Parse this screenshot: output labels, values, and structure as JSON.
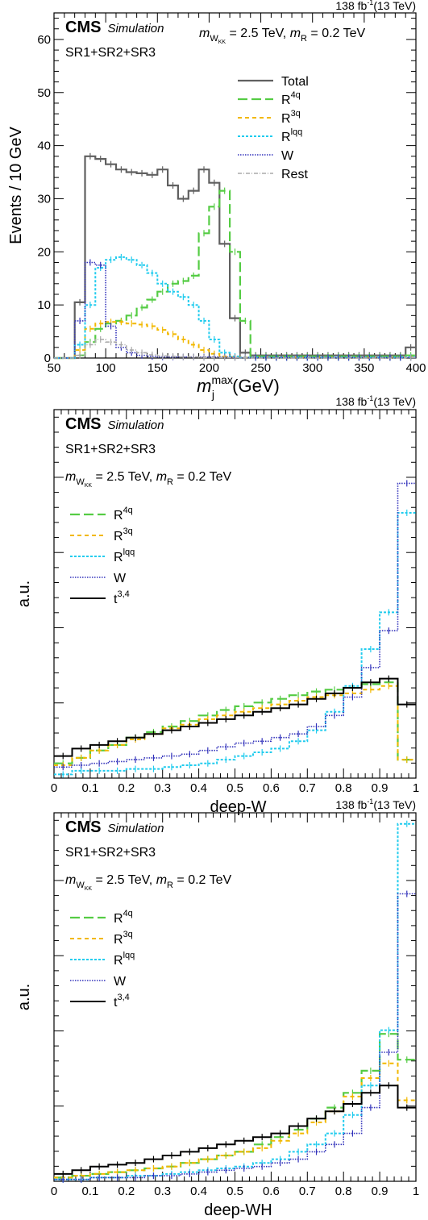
{
  "colors": {
    "total": "#606060",
    "r4q": "#55cc44",
    "r3q": "#f2b800",
    "rlqq": "#22ccee",
    "w": "#3333bb",
    "rest": "#aaaaaa",
    "t34": "#000000"
  },
  "chart_data": [
    {
      "type": "line",
      "lumi": "138 fb",
      "lumi_sup": "-1",
      "energy": "(13 TeV)",
      "cms": "CMS",
      "cms_sub": "Simulation",
      "region": "SR1+SR2+SR3",
      "model_m": "m",
      "model_sub1": "W",
      "model_sub2": "KK",
      "model_mid": " = 2.5 TeV, ",
      "model_m2": "m",
      "model_sub3": "R",
      "model_tail": " = 0.2 TeV",
      "ylabel": "Events / 10 GeV",
      "xlabel_m": "m",
      "xlabel_sup": "max",
      "xlabel_sub": "j",
      "xlabel_unit": " (GeV)",
      "xlim": [
        50,
        400
      ],
      "ylim": [
        0,
        65
      ],
      "xticks": [
        50,
        100,
        150,
        200,
        250,
        300,
        350,
        400
      ],
      "yticks": [
        0,
        10,
        20,
        30,
        40,
        50,
        60
      ],
      "bin_edges": [
        50,
        60,
        70,
        80,
        90,
        100,
        110,
        120,
        130,
        140,
        150,
        160,
        170,
        180,
        190,
        200,
        210,
        220,
        230,
        240,
        250,
        260,
        270,
        280,
        290,
        300,
        310,
        320,
        330,
        340,
        350,
        360,
        370,
        380,
        390,
        400
      ],
      "series": [
        {
          "name": "Total",
          "key": "total",
          "values": [
            0,
            0,
            10.5,
            38.0,
            37.5,
            36.5,
            35.5,
            35.0,
            34.8,
            34.5,
            35.5,
            32.5,
            30.0,
            31.5,
            35.5,
            33.0,
            21.5,
            7.5,
            1.0,
            0.5,
            0.5,
            0.5,
            0.5,
            0.5,
            0.5,
            0.5,
            0.5,
            0.5,
            0.5,
            0.5,
            0.5,
            0.5,
            0.5,
            0.5,
            2.0
          ]
        },
        {
          "name": "R",
          "sup": "4q",
          "key": "r4q",
          "values": [
            0,
            0,
            0.5,
            3.0,
            5.5,
            6.5,
            7.0,
            8.0,
            9.5,
            11.0,
            12.5,
            14.0,
            14.5,
            15.5,
            23.5,
            28.5,
            31.5,
            20.0,
            7.0,
            0.3,
            0.3,
            0.3,
            0.3,
            0.3,
            0.3,
            0.3,
            0.3,
            0.3,
            0.3,
            0.3,
            0.3,
            0.3,
            0.3,
            0.3,
            0.5
          ]
        },
        {
          "name": "R",
          "sup": "3q",
          "key": "r3q",
          "values": [
            0,
            0,
            1.5,
            5.5,
            6.5,
            6.8,
            6.8,
            6.5,
            6.3,
            6.0,
            5.3,
            4.5,
            3.5,
            2.5,
            1.5,
            0.8,
            0.3,
            0.2,
            0.1,
            0.1,
            0.1,
            0.1,
            0.1,
            0.1,
            0.1,
            0.1,
            0.1,
            0.1,
            0.1,
            0.1,
            0.1,
            0.1,
            0.1,
            0.1,
            0.2
          ]
        },
        {
          "name": "R",
          "sup": "lqq",
          "key": "rlqq",
          "values": [
            0,
            0,
            2.5,
            10.0,
            17.0,
            18.5,
            19.0,
            18.5,
            17.5,
            16.0,
            14.0,
            12.5,
            11.5,
            10.0,
            7.0,
            3.5,
            1.0,
            0.3,
            0.1,
            0.1,
            0.1,
            0.1,
            0.1,
            0.1,
            0.1,
            0.1,
            0.1,
            0.1,
            0.1,
            0.1,
            0.1,
            0.1,
            0.1,
            0.1,
            0.2
          ]
        },
        {
          "name": "W",
          "key": "w",
          "values": [
            0,
            0,
            7.0,
            18.0,
            17.5,
            6.0,
            2.0,
            1.0,
            0.5,
            0.3,
            0.2,
            0.2,
            0.2,
            0.2,
            0.2,
            0.2,
            0.2,
            0.1,
            0.1,
            0.1,
            0.1,
            0.1,
            0.1,
            0.1,
            0.1,
            0.1,
            0.1,
            0.1,
            0.1,
            0.1,
            0.1,
            0.1,
            0.1,
            0.1,
            0.1
          ]
        },
        {
          "name": "Rest",
          "key": "rest",
          "values": [
            0,
            0,
            0.5,
            2.5,
            3.5,
            3.0,
            2.5,
            1.5,
            1.0,
            0.6,
            0.4,
            0.3,
            0.2,
            0.2,
            0.1,
            0.1,
            0.1,
            0.1,
            0.1,
            0,
            0,
            0,
            0,
            0,
            0,
            0,
            0,
            0,
            0,
            0,
            0,
            0,
            0,
            0,
            0.1
          ]
        }
      ]
    },
    {
      "type": "line",
      "lumi": "138 fb",
      "lumi_sup": "-1",
      "energy": "(13 TeV)",
      "cms": "CMS",
      "cms_sub": "Simulation",
      "region": "SR1+SR2+SR3",
      "model_m": "m",
      "model_sub1": "W",
      "model_sub2": "KK",
      "model_mid": " = 2.5 TeV, ",
      "model_m2": "m",
      "model_sub3": "R",
      "model_tail": " = 0.2 TeV",
      "ylabel": "a.u.",
      "xlabel": "deep-W",
      "xlim": [
        0,
        1
      ],
      "ylim": [
        0,
        1
      ],
      "xticks": [
        0,
        0.1,
        0.2,
        0.3,
        0.4,
        0.5,
        0.6,
        0.7,
        0.8,
        0.9,
        1
      ],
      "bin_edges": [
        0,
        0.05,
        0.1,
        0.15,
        0.2,
        0.25,
        0.3,
        0.35,
        0.4,
        0.45,
        0.5,
        0.55,
        0.6,
        0.65,
        0.7,
        0.75,
        0.8,
        0.85,
        0.9,
        0.95,
        1.0
      ],
      "series": [
        {
          "name": "R",
          "sup": "4q",
          "key": "r4q",
          "values": [
            0.04,
            0.055,
            0.075,
            0.09,
            0.11,
            0.125,
            0.14,
            0.155,
            0.17,
            0.185,
            0.195,
            0.205,
            0.215,
            0.225,
            0.235,
            0.24,
            0.245,
            0.255,
            0.26,
            0.05
          ]
        },
        {
          "name": "R",
          "sup": "3q",
          "key": "r3q",
          "values": [
            0.035,
            0.055,
            0.075,
            0.09,
            0.105,
            0.12,
            0.135,
            0.145,
            0.16,
            0.17,
            0.18,
            0.19,
            0.2,
            0.21,
            0.22,
            0.225,
            0.23,
            0.24,
            0.25,
            0.05
          ]
        },
        {
          "name": "R",
          "sup": "lqq",
          "key": "rlqq",
          "values": [
            0.01,
            0.02,
            0.02,
            0.02,
            0.025,
            0.025,
            0.03,
            0.035,
            0.04,
            0.05,
            0.06,
            0.07,
            0.08,
            0.1,
            0.13,
            0.18,
            0.25,
            0.35,
            0.45,
            0.72
          ]
        },
        {
          "name": "W",
          "key": "w",
          "values": [
            0.03,
            0.035,
            0.04,
            0.045,
            0.05,
            0.055,
            0.06,
            0.065,
            0.075,
            0.085,
            0.095,
            0.1,
            0.11,
            0.12,
            0.14,
            0.17,
            0.22,
            0.3,
            0.4,
            0.8
          ]
        },
        {
          "name": "t",
          "sup": "3,4",
          "key": "t34",
          "values": [
            0.06,
            0.08,
            0.09,
            0.1,
            0.11,
            0.12,
            0.13,
            0.14,
            0.15,
            0.16,
            0.17,
            0.18,
            0.19,
            0.2,
            0.215,
            0.23,
            0.245,
            0.26,
            0.27,
            0.2
          ]
        }
      ]
    },
    {
      "type": "line",
      "lumi": "138 fb",
      "lumi_sup": "-1",
      "energy": "(13 TeV)",
      "cms": "CMS",
      "cms_sub": "Simulation",
      "region": "SR1+SR2+SR3",
      "model_m": "m",
      "model_sub1": "W",
      "model_sub2": "KK",
      "model_mid": " = 2.5 TeV, ",
      "model_m2": "m",
      "model_sub3": "R",
      "model_tail": " = 0.2 TeV",
      "ylabel": "a.u.",
      "xlabel": "deep-WH",
      "xlim": [
        0,
        1
      ],
      "ylim": [
        0,
        1
      ],
      "xticks": [
        0,
        0.1,
        0.2,
        0.3,
        0.4,
        0.5,
        0.6,
        0.7,
        0.8,
        0.9,
        1
      ],
      "bin_edges": [
        0,
        0.05,
        0.1,
        0.15,
        0.2,
        0.25,
        0.3,
        0.35,
        0.4,
        0.45,
        0.5,
        0.55,
        0.6,
        0.65,
        0.7,
        0.75,
        0.8,
        0.85,
        0.9,
        0.95,
        1.0
      ],
      "series": [
        {
          "name": "R",
          "sup": "4q",
          "key": "r4q",
          "values": [
            0.01,
            0.015,
            0.02,
            0.025,
            0.03,
            0.035,
            0.04,
            0.05,
            0.06,
            0.07,
            0.08,
            0.1,
            0.12,
            0.14,
            0.17,
            0.2,
            0.24,
            0.3,
            0.4,
            0.33
          ]
        },
        {
          "name": "R",
          "sup": "3q",
          "key": "r3q",
          "values": [
            0.01,
            0.015,
            0.02,
            0.025,
            0.03,
            0.035,
            0.04,
            0.05,
            0.06,
            0.07,
            0.08,
            0.09,
            0.11,
            0.13,
            0.16,
            0.19,
            0.23,
            0.28,
            0.32,
            0.22
          ]
        },
        {
          "name": "R",
          "sup": "lqq",
          "key": "rlqq",
          "values": [
            0.005,
            0.005,
            0.01,
            0.01,
            0.015,
            0.015,
            0.02,
            0.025,
            0.03,
            0.035,
            0.04,
            0.05,
            0.06,
            0.08,
            0.1,
            0.13,
            0.18,
            0.26,
            0.41,
            0.97
          ]
        },
        {
          "name": "W",
          "key": "w",
          "values": [
            0.005,
            0.005,
            0.01,
            0.01,
            0.01,
            0.015,
            0.015,
            0.02,
            0.025,
            0.03,
            0.035,
            0.04,
            0.05,
            0.06,
            0.08,
            0.1,
            0.13,
            0.2,
            0.35,
            0.78
          ]
        },
        {
          "name": "t",
          "sup": "3,4",
          "key": "t34",
          "values": [
            0.02,
            0.03,
            0.04,
            0.045,
            0.05,
            0.06,
            0.07,
            0.08,
            0.09,
            0.1,
            0.11,
            0.12,
            0.13,
            0.15,
            0.17,
            0.19,
            0.21,
            0.24,
            0.26,
            0.2
          ]
        }
      ]
    }
  ]
}
